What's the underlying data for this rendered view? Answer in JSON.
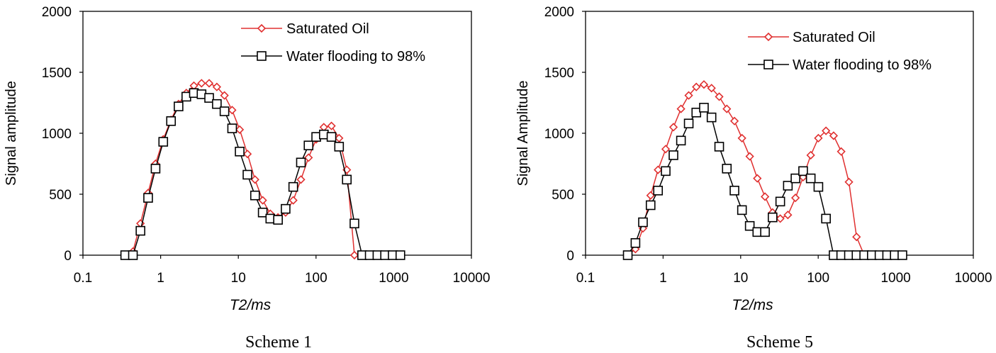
{
  "colors": {
    "saturated": "#e03030",
    "flooding": "#000000",
    "axis": "#000000"
  },
  "chart_data": [
    {
      "type": "line",
      "caption": "Scheme 1",
      "xlabel": "T2/ms",
      "ylabel": "Signal amplitude",
      "xscale": "log",
      "xlim": [
        0.1,
        10000
      ],
      "ylim": [
        0,
        2000
      ],
      "xticks": [
        "0.1",
        "1",
        "10",
        "100",
        "1000",
        "10000"
      ],
      "yticks": [
        "0",
        "500",
        "1000",
        "1500",
        "2000"
      ],
      "legend_position": "top-right",
      "series": [
        {
          "name": "Saturated Oil",
          "marker": "diamond",
          "x": [
            0.35,
            0.44,
            0.55,
            0.69,
            0.86,
            1.08,
            1.36,
            1.7,
            2.14,
            2.68,
            3.36,
            4.21,
            5.29,
            6.63,
            8.32,
            10.4,
            13.1,
            16.4,
            20.6,
            25.8,
            32.4,
            40.6,
            50.9,
            63.9,
            80.1,
            100.5,
            126,
            158,
            198,
            249,
            312,
            392,
            491,
            617,
            774,
            970,
            1217
          ],
          "values": [
            0,
            30,
            260,
            510,
            750,
            950,
            1110,
            1240,
            1330,
            1390,
            1410,
            1410,
            1380,
            1310,
            1190,
            1030,
            830,
            620,
            450,
            340,
            310,
            350,
            450,
            620,
            800,
            950,
            1050,
            1060,
            960,
            700,
            0,
            0,
            0,
            0,
            0,
            0,
            0
          ]
        },
        {
          "name": "Water flooding to 98%",
          "marker": "square",
          "x": [
            0.35,
            0.44,
            0.55,
            0.69,
            0.86,
            1.08,
            1.36,
            1.7,
            2.14,
            2.68,
            3.36,
            4.21,
            5.29,
            6.63,
            8.32,
            10.4,
            13.1,
            16.4,
            20.6,
            25.8,
            32.4,
            40.6,
            50.9,
            63.9,
            80.1,
            100.5,
            126,
            158,
            198,
            249,
            312,
            392,
            491,
            617,
            774,
            970,
            1217
          ],
          "values": [
            0,
            0,
            200,
            470,
            710,
            930,
            1100,
            1220,
            1300,
            1330,
            1320,
            1290,
            1240,
            1180,
            1040,
            850,
            660,
            490,
            350,
            300,
            290,
            380,
            560,
            760,
            900,
            970,
            990,
            970,
            890,
            620,
            260,
            0,
            0,
            0,
            0,
            0,
            0
          ]
        }
      ]
    },
    {
      "type": "line",
      "caption": "Scheme 5",
      "xlabel": "T2/ms",
      "ylabel": "Signal Amplitude",
      "xscale": "log",
      "xlim": [
        0.1,
        10000
      ],
      "ylim": [
        0,
        2000
      ],
      "xticks": [
        "0.1",
        "1",
        "10",
        "100",
        "1000",
        "10000"
      ],
      "yticks": [
        "0",
        "500",
        "1000",
        "1500",
        "2000"
      ],
      "legend_position": "top-right",
      "series": [
        {
          "name": "Saturated Oil",
          "marker": "diamond",
          "x": [
            0.35,
            0.44,
            0.55,
            0.69,
            0.86,
            1.08,
            1.36,
            1.7,
            2.14,
            2.68,
            3.36,
            4.21,
            5.29,
            6.63,
            8.32,
            10.4,
            13.1,
            16.4,
            20.6,
            25.8,
            32.4,
            40.6,
            50.9,
            63.9,
            80.1,
            100.5,
            126,
            158,
            198,
            249,
            312,
            392,
            491,
            617,
            774,
            970,
            1217
          ],
          "values": [
            0,
            50,
            220,
            490,
            700,
            870,
            1050,
            1200,
            1310,
            1380,
            1400,
            1370,
            1300,
            1200,
            1100,
            960,
            810,
            630,
            480,
            350,
            300,
            330,
            470,
            640,
            820,
            960,
            1020,
            980,
            850,
            600,
            150,
            0,
            0,
            0,
            0,
            0,
            0
          ]
        },
        {
          "name": "Water flooding to 98%",
          "marker": "square",
          "x": [
            0.35,
            0.44,
            0.55,
            0.69,
            0.86,
            1.08,
            1.36,
            1.7,
            2.14,
            2.68,
            3.36,
            4.21,
            5.29,
            6.63,
            8.32,
            10.4,
            13.1,
            16.4,
            20.6,
            25.8,
            32.4,
            40.6,
            50.9,
            63.9,
            80.1,
            100.5,
            126,
            158,
            198,
            249,
            312,
            392,
            491,
            617,
            774,
            970,
            1217
          ],
          "values": [
            0,
            100,
            270,
            410,
            530,
            690,
            820,
            940,
            1080,
            1170,
            1210,
            1130,
            890,
            710,
            530,
            370,
            240,
            190,
            190,
            310,
            440,
            570,
            630,
            690,
            630,
            560,
            300,
            0,
            0,
            0,
            0,
            0,
            0,
            0,
            0,
            0,
            0
          ]
        }
      ]
    }
  ]
}
